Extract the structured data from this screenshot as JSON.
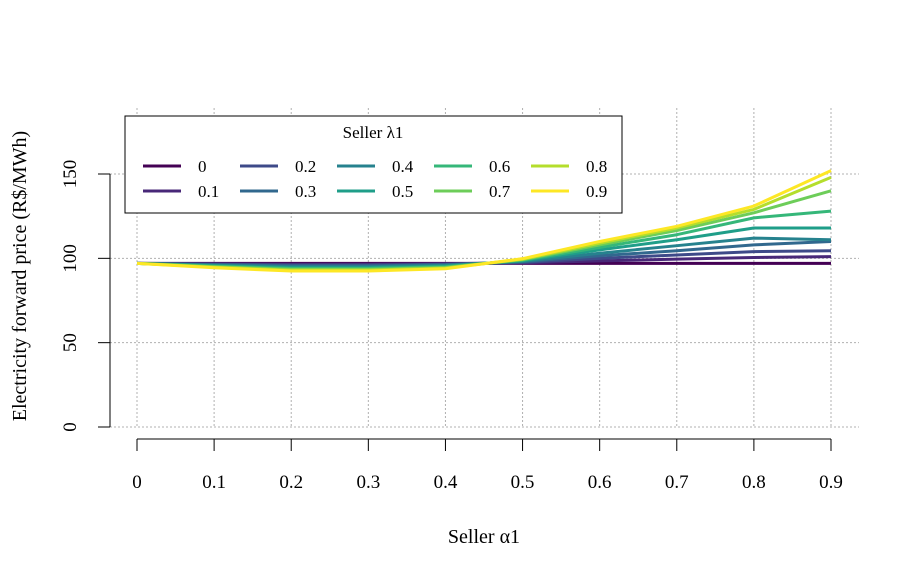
{
  "chart_data": {
    "type": "line",
    "xlabel": "Seller α1",
    "ylabel": "Electricity forward price (R$/MWh)",
    "x": [
      0,
      0.1,
      0.2,
      0.3,
      0.4,
      0.5,
      0.6,
      0.7,
      0.8,
      0.9
    ],
    "x_tick_labels": [
      "0",
      "0.1",
      "0.2",
      "0.3",
      "0.4",
      "0.5",
      "0.6",
      "0.7",
      "0.8",
      "0.9"
    ],
    "xlim": [
      0,
      0.9
    ],
    "y_ticks": [
      0,
      50,
      100,
      150
    ],
    "y_tick_labels": [
      "0",
      "50",
      "100",
      "150"
    ],
    "ylim": [
      0,
      150
    ],
    "grid": true,
    "legend": {
      "title": "Seller λ1",
      "placement": "top-left",
      "columns": 5
    },
    "series": [
      {
        "name": "0",
        "color": "#440154",
        "values": [
          97,
          97,
          97,
          97,
          97,
          97,
          97,
          97,
          97,
          97
        ]
      },
      {
        "name": "0.1",
        "color": "#482878",
        "values": [
          97,
          96.8,
          96.5,
          96.5,
          96.8,
          97.3,
          98.5,
          99.5,
          100.5,
          101
        ]
      },
      {
        "name": "0.2",
        "color": "#3E4A89",
        "values": [
          97,
          96.5,
          96,
          96,
          96.5,
          97.6,
          100,
          102,
          104,
          104.5
        ]
      },
      {
        "name": "0.3",
        "color": "#31688E",
        "values": [
          97,
          96.2,
          95.5,
          95.5,
          96.2,
          98,
          101.5,
          104.5,
          108,
          110
        ]
      },
      {
        "name": "0.4",
        "color": "#26828E",
        "values": [
          97,
          95.9,
          95,
          95,
          95.8,
          98.3,
          103,
          107.5,
          112,
          111
        ]
      },
      {
        "name": "0.5",
        "color": "#1F9E89",
        "values": [
          97,
          95.6,
          94.5,
          94.5,
          95.4,
          98.6,
          105,
          111,
          118,
          118
        ]
      },
      {
        "name": "0.6",
        "color": "#35B779",
        "values": [
          97,
          95.3,
          94,
          94,
          95,
          98.9,
          106.5,
          114,
          124,
          128
        ]
      },
      {
        "name": "0.7",
        "color": "#6DCD59",
        "values": [
          97,
          95,
          93.5,
          93.5,
          94.6,
          99.2,
          108,
          116.5,
          127,
          140
        ]
      },
      {
        "name": "0.8",
        "color": "#B4DE2C",
        "values": [
          97,
          94.7,
          93,
          93,
          94.2,
          99.5,
          109,
          118,
          129,
          148
        ]
      },
      {
        "name": "0.9",
        "color": "#FDE725",
        "values": [
          97,
          94.4,
          92.5,
          92.5,
          93.8,
          99.8,
          110,
          119,
          131,
          152
        ]
      }
    ]
  }
}
